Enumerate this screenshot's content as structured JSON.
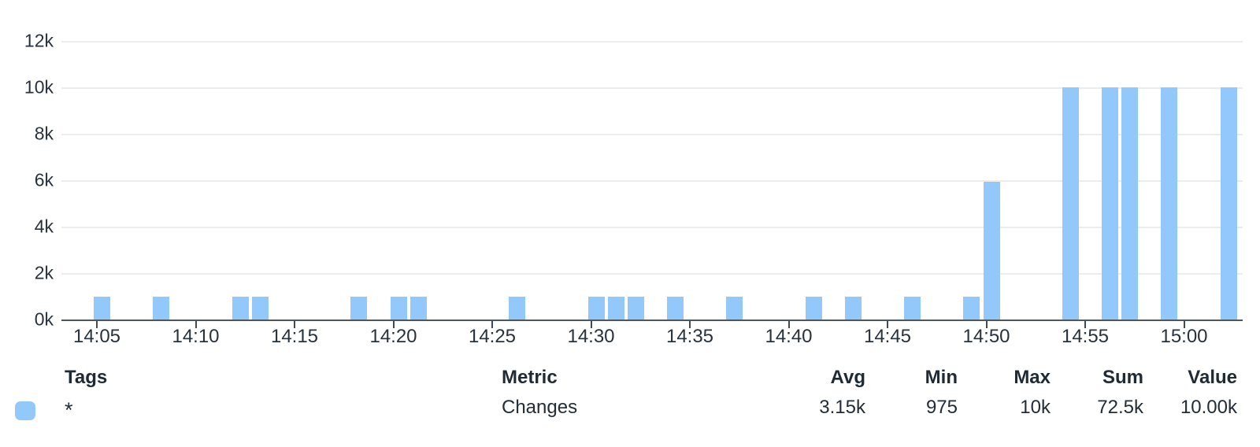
{
  "chart_data": {
    "type": "bar",
    "title": "",
    "xlabel": "",
    "ylabel": "",
    "grid": true,
    "legend_position": "bottom",
    "ylim": [
      0,
      12000
    ],
    "y_tick_step": 2000,
    "y_tick_labels": [
      "0k",
      "2k",
      "4k",
      "6k",
      "8k",
      "10k",
      "12k"
    ],
    "x_tick_labels": [
      "14:05",
      "14:10",
      "14:15",
      "14:20",
      "14:25",
      "14:30",
      "14:35",
      "14:40",
      "14:45",
      "14:50",
      "14:55",
      "15:00"
    ],
    "x_domain": [
      "14:03",
      "15:03"
    ],
    "series": [
      {
        "name": "Changes",
        "tag": "*",
        "color": "#93c8fb",
        "points": [
          {
            "t": "14:05",
            "v": 975
          },
          {
            "t": "14:08",
            "v": 975
          },
          {
            "t": "14:12",
            "v": 975
          },
          {
            "t": "14:13",
            "v": 975
          },
          {
            "t": "14:18",
            "v": 975
          },
          {
            "t": "14:20",
            "v": 975
          },
          {
            "t": "14:21",
            "v": 975
          },
          {
            "t": "14:26",
            "v": 975
          },
          {
            "t": "14:30",
            "v": 975
          },
          {
            "t": "14:31",
            "v": 975
          },
          {
            "t": "14:32",
            "v": 975
          },
          {
            "t": "14:34",
            "v": 975
          },
          {
            "t": "14:37",
            "v": 975
          },
          {
            "t": "14:41",
            "v": 975
          },
          {
            "t": "14:43",
            "v": 975
          },
          {
            "t": "14:46",
            "v": 975
          },
          {
            "t": "14:49",
            "v": 975
          },
          {
            "t": "14:50",
            "v": 5925
          },
          {
            "t": "14:54",
            "v": 10000
          },
          {
            "t": "14:56",
            "v": 10000
          },
          {
            "t": "14:57",
            "v": 10000
          },
          {
            "t": "14:59",
            "v": 10000
          },
          {
            "t": "15:02",
            "v": 10000
          }
        ]
      }
    ]
  },
  "legend_table": {
    "headers": {
      "tags": "Tags",
      "metric": "Metric",
      "avg": "Avg",
      "min": "Min",
      "max": "Max",
      "sum": "Sum",
      "value": "Value"
    },
    "rows": [
      {
        "tag": "*",
        "metric": "Changes",
        "avg": "3.15k",
        "min": "975",
        "max": "10k",
        "sum": "72.5k",
        "value": "10.00k",
        "swatch_color": "#93c8fb"
      }
    ]
  },
  "colors": {
    "bar": "#93c8fb",
    "grid": "#ececec",
    "axis": "#4d5761",
    "text": "#28323d",
    "background": "#ffffff"
  }
}
